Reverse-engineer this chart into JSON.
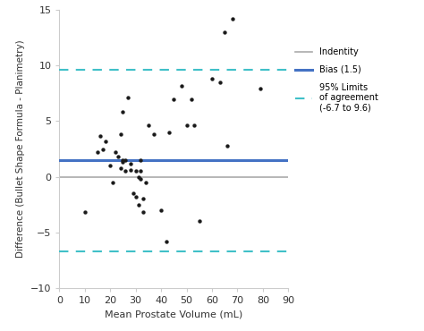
{
  "scatter_x": [
    10,
    15,
    16,
    17,
    18,
    20,
    21,
    22,
    23,
    24,
    24,
    25,
    25,
    25,
    26,
    26,
    27,
    28,
    28,
    29,
    30,
    30,
    31,
    31,
    32,
    32,
    32,
    33,
    33,
    34,
    35,
    37,
    40,
    42,
    43,
    45,
    48,
    50,
    52,
    53,
    55,
    60,
    63,
    65,
    66,
    68,
    79
  ],
  "scatter_y": [
    -3.2,
    2.2,
    3.7,
    2.5,
    3.2,
    1.0,
    -0.5,
    2.2,
    1.8,
    3.8,
    0.8,
    5.8,
    1.5,
    1.3,
    1.5,
    0.5,
    7.1,
    0.6,
    1.2,
    -1.5,
    -1.8,
    0.5,
    -2.5,
    0.0,
    1.5,
    -0.2,
    0.5,
    -2.0,
    -3.2,
    -0.5,
    4.6,
    3.8,
    -3.0,
    -5.8,
    4.0,
    7.0,
    8.2,
    4.6,
    7.0,
    4.6,
    -4.0,
    8.8,
    8.5,
    13.0,
    2.8,
    14.2,
    7.9
  ],
  "bias": 1.5,
  "loa_upper": 9.6,
  "loa_lower": -6.7,
  "identity": 0,
  "xlim": [
    0,
    90
  ],
  "ylim": [
    -10,
    15
  ],
  "xticks": [
    0,
    10,
    20,
    30,
    40,
    50,
    60,
    70,
    80,
    90
  ],
  "yticks": [
    -10,
    -5,
    0,
    5,
    10,
    15
  ],
  "xlabel": "Mean Prostate Volume (mL)",
  "ylabel": "Difference (Bullet Shape Formula - Planimetry)",
  "scatter_color": "#1a1a1a",
  "bias_color": "#4472c4",
  "loa_color": "#40c0c8",
  "identity_color": "#aaaaaa",
  "legend_identity": "Indentity",
  "legend_bias": "Bias (1.5)",
  "legend_loa": "95% Limits\nof agreement\n(-6.7 to 9.6)",
  "scatter_size": 10,
  "bias_linewidth": 2.2,
  "loa_linewidth": 1.5,
  "identity_linewidth": 1.2,
  "bg_color": "#ffffff"
}
